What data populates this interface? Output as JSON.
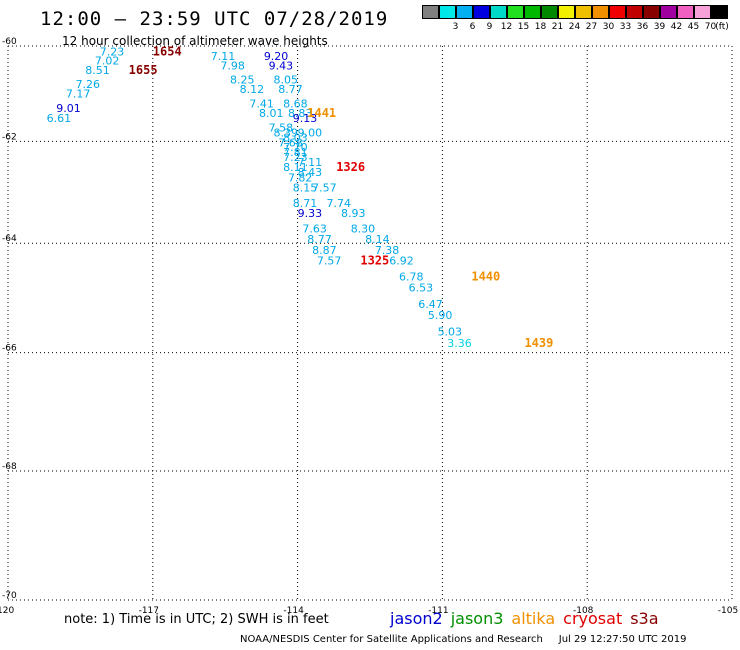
{
  "title": "12:00 – 23:59 UTC 07/28/2019",
  "subtitle": "12 hour collection of altimeter wave heights",
  "scale": {
    "unit": "(ft)",
    "items": [
      {
        "color": "#808080",
        "label": ""
      },
      {
        "color": "#00e8e8",
        "label": "3"
      },
      {
        "color": "#00b0f0",
        "label": "6"
      },
      {
        "color": "#0000e0",
        "label": "9"
      },
      {
        "color": "#00d8c8",
        "label": "12"
      },
      {
        "color": "#20e020",
        "label": "15"
      },
      {
        "color": "#00b800",
        "label": "18"
      },
      {
        "color": "#008800",
        "label": "21"
      },
      {
        "color": "#f0f000",
        "label": "24"
      },
      {
        "color": "#f0c000",
        "label": "27"
      },
      {
        "color": "#f09000",
        "label": "30"
      },
      {
        "color": "#f00000",
        "label": "33"
      },
      {
        "color": "#c00000",
        "label": "36"
      },
      {
        "color": "#880000",
        "label": "39"
      },
      {
        "color": "#a000a0",
        "label": "42"
      },
      {
        "color": "#f060c0",
        "label": "45"
      },
      {
        "color": "#f8a0d8",
        "label": "70"
      },
      {
        "color": "#000000",
        "label": ""
      }
    ]
  },
  "map": {
    "lon_range": [
      -120,
      -105
    ],
    "lat_range": [
      -70,
      -60
    ],
    "lon_ticks": [
      "-120",
      "-117",
      "-114",
      "-111",
      "-108",
      "-105"
    ],
    "lat_ticks": [
      "-60",
      "-62",
      "-64",
      "-66",
      "-68",
      "-70"
    ],
    "grid": "dotted"
  },
  "observations": [
    {
      "lon": -118.1,
      "lat": -60.2,
      "swh": "7.23",
      "color": "#00a8e8"
    },
    {
      "lon": -118.2,
      "lat": -60.4,
      "swh": "7.02",
      "color": "#00a8e8"
    },
    {
      "lon": -118.4,
      "lat": -60.6,
      "swh": "8.51",
      "color": "#00a8e8"
    },
    {
      "lon": -118.6,
      "lat": -60.9,
      "swh": "7.26",
      "color": "#00a8e8"
    },
    {
      "lon": -118.8,
      "lat": -61.1,
      "swh": "7.17",
      "color": "#00a8e8"
    },
    {
      "lon": -119.0,
      "lat": -61.4,
      "swh": "9.01",
      "color": "#0000d0"
    },
    {
      "lon": -119.2,
      "lat": -61.6,
      "swh": "6.61",
      "color": "#00a8e8"
    },
    {
      "lon": -115.8,
      "lat": -60.3,
      "swh": "7.11",
      "color": "#00a8e8"
    },
    {
      "lon": -115.6,
      "lat": -60.5,
      "swh": "7.98",
      "color": "#00a8e8"
    },
    {
      "lon": -115.4,
      "lat": -60.8,
      "swh": "8.25",
      "color": "#00a8e8"
    },
    {
      "lon": -115.2,
      "lat": -61.0,
      "swh": "8.12",
      "color": "#00a8e8"
    },
    {
      "lon": -115.0,
      "lat": -61.3,
      "swh": "7.41",
      "color": "#00a8e8"
    },
    {
      "lon": -114.8,
      "lat": -61.5,
      "swh": "8.01",
      "color": "#00a8e8"
    },
    {
      "lon": -114.6,
      "lat": -61.8,
      "swh": "7.58",
      "color": "#00a8e8"
    },
    {
      "lon": -114.7,
      "lat": -60.3,
      "swh": "9.20",
      "color": "#0000d0"
    },
    {
      "lon": -114.6,
      "lat": -60.5,
      "swh": "9.43",
      "color": "#0000d0"
    },
    {
      "lon": -114.5,
      "lat": -60.8,
      "swh": "8.05",
      "color": "#00a8e8"
    },
    {
      "lon": -114.4,
      "lat": -61.0,
      "swh": "8.77",
      "color": "#00a8e8"
    },
    {
      "lon": -114.3,
      "lat": -61.3,
      "swh": "8.68",
      "color": "#00a8e8"
    },
    {
      "lon": -114.2,
      "lat": -61.5,
      "swh": "8.83",
      "color": "#00a8e8"
    },
    {
      "lon": -114.1,
      "lat": -61.6,
      "swh": "9.13",
      "color": "#0000d0"
    },
    {
      "lon": -114.0,
      "lat": -61.9,
      "swh": "9.00",
      "color": "#00a8e8"
    },
    {
      "lon": -114.5,
      "lat": -61.9,
      "swh": "8.39",
      "color": "#00a8e8"
    },
    {
      "lon": -114.3,
      "lat": -62.0,
      "swh": "8.03",
      "color": "#00a8e8"
    },
    {
      "lon": -114.4,
      "lat": -62.1,
      "swh": "7.68",
      "color": "#00a8e8"
    },
    {
      "lon": -114.3,
      "lat": -62.2,
      "swh": "7.70",
      "color": "#00a8e8"
    },
    {
      "lon": -114.3,
      "lat": -62.3,
      "swh": "7.81",
      "color": "#00a8e8"
    },
    {
      "lon": -114.3,
      "lat": -62.4,
      "swh": "7.23",
      "color": "#00a8e8"
    },
    {
      "lon": -114.3,
      "lat": -62.6,
      "swh": "8.11",
      "color": "#00a8e8"
    },
    {
      "lon": -114.0,
      "lat": -62.5,
      "swh": "7.11",
      "color": "#00a8e8"
    },
    {
      "lon": -114.0,
      "lat": -62.7,
      "swh": "8.43",
      "color": "#00a8e8"
    },
    {
      "lon": -114.2,
      "lat": -62.8,
      "swh": "7.82",
      "color": "#00a8e8"
    },
    {
      "lon": -113.7,
      "lat": -63.0,
      "swh": "7.57",
      "color": "#00a8e8"
    },
    {
      "lon": -114.1,
      "lat": -63.0,
      "swh": "8.15",
      "color": "#00a8e8"
    },
    {
      "lon": -113.4,
      "lat": -63.3,
      "swh": "7.74",
      "color": "#00a8e8"
    },
    {
      "lon": -114.1,
      "lat": -63.3,
      "swh": "8.71",
      "color": "#00a8e8"
    },
    {
      "lon": -113.1,
      "lat": -63.5,
      "swh": "8.93",
      "color": "#00a8e8"
    },
    {
      "lon": -114.0,
      "lat": -63.5,
      "swh": "9.33",
      "color": "#0000d0"
    },
    {
      "lon": -112.9,
      "lat": -63.8,
      "swh": "8.30",
      "color": "#00a8e8"
    },
    {
      "lon": -113.9,
      "lat": -63.8,
      "swh": "7.63",
      "color": "#00a8e8"
    },
    {
      "lon": -112.6,
      "lat": -64.0,
      "swh": "8.14",
      "color": "#00a8e8"
    },
    {
      "lon": -113.8,
      "lat": -64.0,
      "swh": "8.77",
      "color": "#00a8e8"
    },
    {
      "lon": -112.4,
      "lat": -64.2,
      "swh": "7.38",
      "color": "#00a8e8"
    },
    {
      "lon": -113.7,
      "lat": -64.2,
      "swh": "8.87",
      "color": "#00a8e8"
    },
    {
      "lon": -113.6,
      "lat": -64.4,
      "swh": "7.57",
      "color": "#00a8e8"
    },
    {
      "lon": -112.1,
      "lat": -64.4,
      "swh": "6.92",
      "color": "#00a8e8"
    },
    {
      "lon": -111.9,
      "lat": -64.7,
      "swh": "6.78",
      "color": "#00a8e8"
    },
    {
      "lon": -111.7,
      "lat": -64.9,
      "swh": "6.53",
      "color": "#00a8e8"
    },
    {
      "lon": -111.5,
      "lat": -65.2,
      "swh": "6.47",
      "color": "#00a8e8"
    },
    {
      "lon": -111.3,
      "lat": -65.4,
      "swh": "5.90",
      "color": "#00a8e8"
    },
    {
      "lon": -111.1,
      "lat": -65.7,
      "swh": "5.03",
      "color": "#00a8e8"
    },
    {
      "lon": -110.9,
      "lat": -65.9,
      "swh": "3.36",
      "color": "#00d0e0"
    }
  ],
  "time_labels": [
    {
      "lon": -117.0,
      "lat": -60.2,
      "text": "1654",
      "color": "#880000"
    },
    {
      "lon": -117.5,
      "lat": -60.6,
      "text": "1655",
      "color": "#880000"
    },
    {
      "lon": -113.8,
      "lat": -61.5,
      "text": "1441",
      "color": "#f09000"
    },
    {
      "lon": -113.2,
      "lat": -62.6,
      "text": "1326",
      "color": "#e00000"
    },
    {
      "lon": -112.7,
      "lat": -64.4,
      "text": "1325",
      "color": "#e00000"
    },
    {
      "lon": -110.4,
      "lat": -64.7,
      "text": "1440",
      "color": "#f09000"
    },
    {
      "lon": -109.3,
      "lat": -65.9,
      "text": "1439",
      "color": "#f09000"
    }
  ],
  "note": "note:  1) Time is in UTC;  2) SWH is in feet",
  "legend": [
    {
      "text": "jason2",
      "color": "#0000d0"
    },
    {
      "text": "jason3",
      "color": "#009000"
    },
    {
      "text": "altika",
      "color": "#f09000"
    },
    {
      "text": "cryosat",
      "color": "#e00000"
    },
    {
      "text": "s3a",
      "color": "#880000"
    }
  ],
  "credit_left": "NOAA/NESDIS Center for Satellite Applications and Research",
  "credit_right": "Jul 29 12:27:50 UTC 2019"
}
